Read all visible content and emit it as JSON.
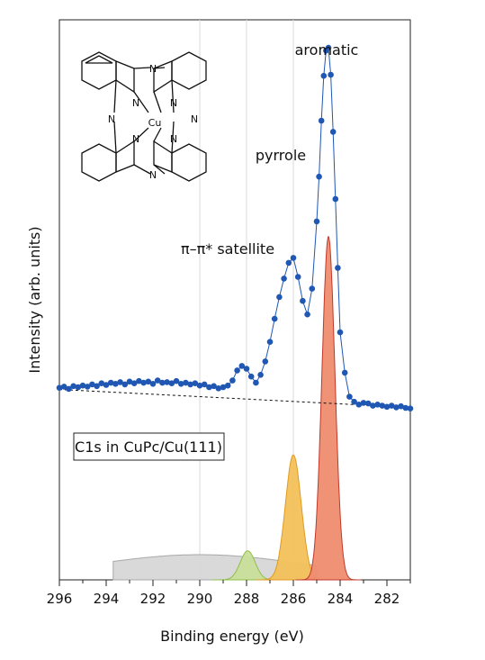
{
  "chart_data": {
    "type": "scatter",
    "xlabel": "Binding energy (eV)",
    "ylabel": "Intensity (arb. units)",
    "x_reversed": true,
    "xlim": [
      296,
      281
    ],
    "ylim": [
      0,
      1
    ],
    "xticks": [
      "296",
      "294",
      "292",
      "290",
      "288",
      "286",
      "284",
      "282"
    ],
    "vertical_guides_eV": [
      290,
      288,
      286
    ],
    "legend_box_text": "C1s in CuPc/Cu(111)",
    "annotations": [
      {
        "text": "aromatic",
        "x": 284.5,
        "y": 0.935
      },
      {
        "text": "pyrrole",
        "x": 286.0,
        "y": 0.753
      },
      {
        "text": "π–π* satellite",
        "x": 288.1,
        "y": 0.601
      }
    ],
    "molecule_label_atoms": [
      "N",
      "Cu"
    ],
    "series": [
      {
        "kind": "measured",
        "color": "#1f57b3",
        "x": [
          296.0,
          295.8,
          295.6,
          295.4,
          295.2,
          295.0,
          294.8,
          294.6,
          294.4,
          294.2,
          294.0,
          293.8,
          293.6,
          293.4,
          293.2,
          293.0,
          292.8,
          292.6,
          292.4,
          292.2,
          292.0,
          291.8,
          291.6,
          291.4,
          291.2,
          291.0,
          290.8,
          290.6,
          290.4,
          290.2,
          290.0,
          289.8,
          289.6,
          289.4,
          289.2,
          289.0,
          288.8,
          288.6,
          288.4,
          288.2,
          288.0,
          287.8,
          287.6,
          287.4,
          287.2,
          287.0,
          286.8,
          286.6,
          286.4,
          286.2,
          286.0,
          285.8,
          285.6,
          285.4,
          285.2,
          285.0,
          284.9,
          284.8,
          284.7,
          284.6,
          284.5,
          284.4,
          284.3,
          284.2,
          284.1,
          284.0,
          283.8,
          283.6,
          283.4,
          283.2,
          283.0,
          282.8,
          282.6,
          282.4,
          282.2,
          282.0,
          281.8,
          281.6,
          281.4,
          281.2,
          281.0
        ],
        "y": [
          0.343,
          0.345,
          0.341,
          0.346,
          0.344,
          0.347,
          0.345,
          0.349,
          0.346,
          0.351,
          0.348,
          0.352,
          0.35,
          0.353,
          0.349,
          0.354,
          0.351,
          0.355,
          0.352,
          0.354,
          0.35,
          0.356,
          0.352,
          0.353,
          0.351,
          0.355,
          0.35,
          0.352,
          0.349,
          0.351,
          0.347,
          0.349,
          0.344,
          0.346,
          0.342,
          0.344,
          0.347,
          0.356,
          0.374,
          0.382,
          0.377,
          0.363,
          0.352,
          0.366,
          0.39,
          0.425,
          0.466,
          0.505,
          0.538,
          0.566,
          0.575,
          0.541,
          0.498,
          0.474,
          0.52,
          0.64,
          0.72,
          0.82,
          0.9,
          0.945,
          0.95,
          0.902,
          0.8,
          0.68,
          0.557,
          0.442,
          0.37,
          0.327,
          0.318,
          0.313,
          0.316,
          0.315,
          0.311,
          0.313,
          0.311,
          0.309,
          0.311,
          0.308,
          0.31,
          0.307,
          0.306
        ]
      },
      {
        "kind": "fit-envelope",
        "color": "#1f57b3"
      },
      {
        "kind": "baseline",
        "color": "#111111",
        "x": [
          296.0,
          282.0
        ],
        "y": [
          0.34,
          0.31
        ]
      },
      {
        "kind": "component",
        "label": "aromatic",
        "color": "#ef8c6e",
        "stroke": "#c0392b",
        "center": 284.5,
        "fwhm": 0.65,
        "height": 0.613,
        "x_range": [
          285.9,
          283.1
        ]
      },
      {
        "kind": "component",
        "label": "pyrrole",
        "color": "#f4c15a",
        "stroke": "#e09a20",
        "center": 286.0,
        "fwhm": 0.8,
        "height": 0.223,
        "x_range": [
          287.6,
          284.4
        ]
      },
      {
        "kind": "component",
        "label": "π–π* satellite",
        "color": "#c9df9a",
        "stroke": "#8fbf4e",
        "center": 287.95,
        "fwhm": 0.75,
        "height": 0.052,
        "x_range": [
          289.5,
          286.5
        ]
      },
      {
        "kind": "component",
        "label": "background",
        "color": "#d7d7d7",
        "stroke": "#a8a8a8",
        "center": 290.0,
        "fwhm": 11.0,
        "height": 0.045,
        "x_range": [
          293.7,
          285.0
        ]
      }
    ]
  }
}
